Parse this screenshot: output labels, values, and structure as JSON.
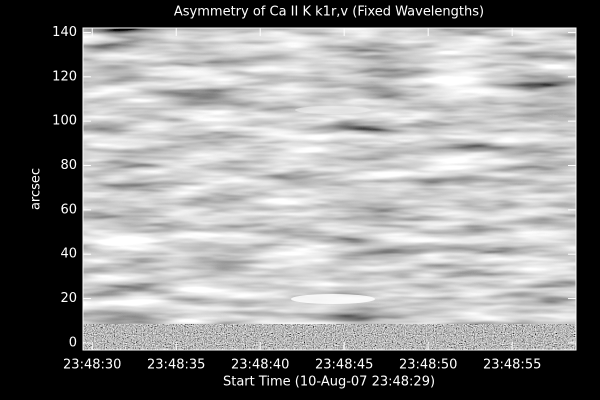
{
  "chart_data": {
    "type": "image",
    "title": "Asymmetry of Ca II K k1r,v (Fixed Wavelengths)",
    "x_label": "Start Time (10-Aug-07 23:48:29)",
    "y_label": "arcsec",
    "xlim": [
      "23:48:29.45",
      "23:48:58.8"
    ],
    "xticks": [
      "23:48:30",
      "23:48:35",
      "23:48:40",
      "23:48:45",
      "23:48:50",
      "23:48:55"
    ],
    "ylim": [
      -3.2,
      142
    ],
    "yticks": [
      0,
      20,
      40,
      60,
      80,
      100,
      120,
      140
    ]
  }
}
